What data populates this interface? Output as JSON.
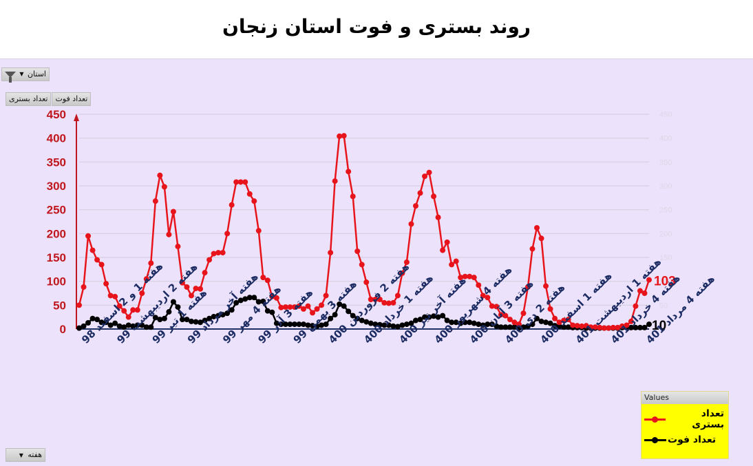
{
  "title": "روند بستری و فوت استان زنجان",
  "controls": {
    "filter_label": "استان",
    "series_buttons": [
      "تعداد بستری",
      "تعداد فوت"
    ],
    "axis_field_label": "هفته"
  },
  "legend": {
    "header": "Values",
    "items": [
      {
        "label": "تعداد بستری",
        "color": "#e8141b"
      },
      {
        "label": "تعداد فوت",
        "color": "#000000"
      }
    ]
  },
  "end_labels": {
    "hospitalized": "103",
    "deaths": "10"
  },
  "colors": {
    "hospitalized": "#e8141b",
    "deaths": "#000000",
    "axis_left": "#c0171e",
    "axis_x": "#1f2f63",
    "grid": "#d6cfdf",
    "panel_bg": "#ece2fb",
    "tick_label": "#1c2c63"
  },
  "chart_data": {
    "type": "line",
    "title": "روند بستری و فوت استان زنجان",
    "xlabel": "هفته",
    "ylabel": "",
    "ylim": [
      0,
      450
    ],
    "yticks": [
      0,
      50,
      100,
      150,
      200,
      250,
      300,
      350,
      400,
      450
    ],
    "grid": true,
    "legend_position": "bottom-right",
    "x_tick_labels": [
      "هفته 1 و 2 اسفند 98",
      "هفته 2 اردیبهشت 99",
      "هفته 1 تیر 99",
      "هفته آخر مرداد 99",
      "هفته 4 مهر 99",
      "هفته 3 آذر 99",
      "هفته 3 بهمن 99",
      "هفته 2 فروردین 400",
      "هفته 1 خرداد 400",
      "هفته آخر تیر 400",
      "هفته 4 شهریور 400",
      "هفته 3 آبان 400",
      "هفته 2 دی 400",
      "هفته 1 اسفند 400",
      "هفته 1 اردیبهشت 401",
      "هفته 4 خرداد 401",
      "هفته 4 مرداد 401"
    ],
    "series": [
      {
        "name": "تعداد بستری",
        "values": [
          50,
          88,
          195,
          165,
          145,
          135,
          95,
          70,
          68,
          48,
          38,
          25,
          40,
          40,
          75,
          105,
          138,
          268,
          322,
          298,
          198,
          246,
          173,
          97,
          88,
          70,
          85,
          84,
          118,
          145,
          158,
          160,
          160,
          200,
          260,
          308,
          308,
          308,
          283,
          268,
          206,
          108,
          102,
          68,
          65,
          45,
          46,
          46,
          46,
          48,
          42,
          48,
          34,
          42,
          50,
          70,
          160,
          310,
          404,
          405,
          330,
          278,
          163,
          135,
          98,
          62,
          62,
          62,
          55,
          54,
          55,
          70,
          117,
          140,
          220,
          258,
          285,
          320,
          328,
          278,
          234,
          165,
          182,
          135,
          142,
          108,
          110,
          110,
          108,
          92,
          70,
          66,
          48,
          47,
          30,
          28,
          20,
          14,
          10,
          33,
          88,
          168,
          212,
          190,
          90,
          42,
          22,
          14,
          18,
          20,
          8,
          7,
          6,
          7,
          4,
          4,
          3,
          2,
          2,
          3,
          3,
          6,
          8,
          16,
          48,
          80,
          75,
          103
        ]
      },
      {
        "name": "تعداد فوت",
        "values": [
          2,
          6,
          13,
          22,
          20,
          14,
          14,
          8,
          12,
          6,
          4,
          8,
          6,
          8,
          8,
          4,
          4,
          24,
          20,
          22,
          36,
          57,
          46,
          20,
          20,
          16,
          15,
          14,
          18,
          22,
          26,
          28,
          30,
          33,
          40,
          55,
          60,
          63,
          66,
          66,
          57,
          58,
          38,
          35,
          12,
          10,
          10,
          10,
          10,
          10,
          10,
          8,
          7,
          6,
          8,
          10,
          22,
          30,
          52,
          48,
          37,
          28,
          22,
          18,
          15,
          12,
          10,
          9,
          8,
          8,
          6,
          5,
          8,
          10,
          12,
          18,
          20,
          25,
          25,
          27,
          25,
          28,
          18,
          14,
          14,
          12,
          14,
          14,
          12,
          10,
          8,
          10,
          10,
          6,
          4,
          4,
          4,
          4,
          2,
          4,
          6,
          10,
          22,
          16,
          14,
          12,
          7,
          6,
          4,
          4,
          3,
          3,
          3,
          2,
          2,
          2,
          2,
          2,
          2,
          2,
          2,
          3,
          3,
          3,
          3,
          3,
          3,
          10
        ]
      }
    ]
  }
}
